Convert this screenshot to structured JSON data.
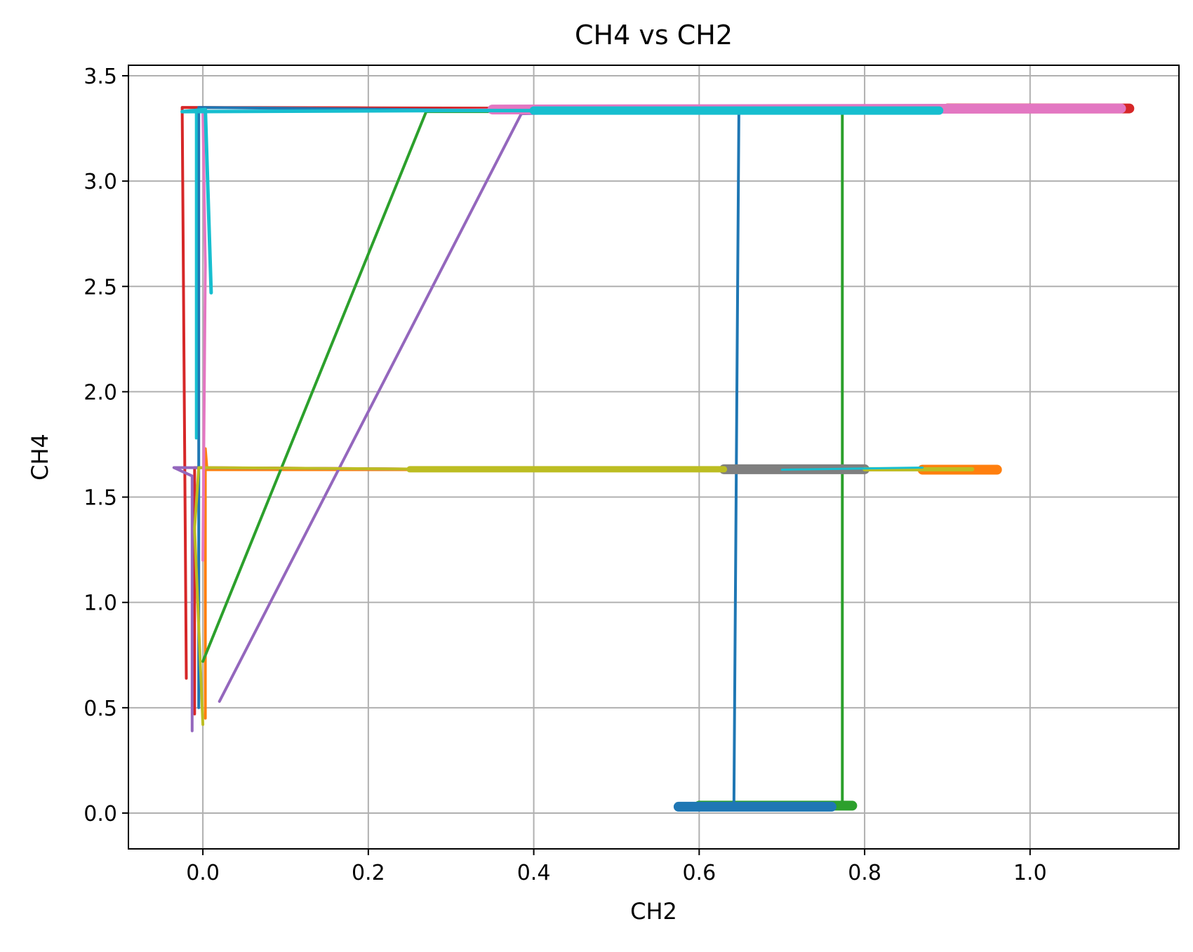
{
  "chart_data": {
    "type": "line",
    "title": "CH4 vs CH2",
    "xlabel": "CH2",
    "ylabel": "CH4",
    "xlim": [
      -0.09,
      1.18
    ],
    "ylim": [
      -0.17,
      3.55
    ],
    "xticks": [
      0.0,
      0.2,
      0.4,
      0.6,
      0.8,
      1.0
    ],
    "yticks": [
      0.0,
      0.5,
      1.0,
      1.5,
      2.0,
      2.5,
      3.0,
      3.5
    ],
    "xtick_labels": [
      "0.0",
      "0.2",
      "0.4",
      "0.6",
      "0.8",
      "1.0"
    ],
    "ytick_labels": [
      "0.0",
      "0.5",
      "1.0",
      "1.5",
      "2.0",
      "2.5",
      "3.0",
      "3.5"
    ],
    "grid": true,
    "legend": "none",
    "series": [
      {
        "color": "#d62728",
        "width": 4,
        "points": [
          [
            -0.02,
            0.64
          ],
          [
            -0.025,
            3.35
          ],
          [
            0.2,
            3.348
          ],
          [
            0.5,
            3.345
          ],
          [
            0.8,
            3.342
          ],
          [
            1.12,
            3.345
          ]
        ]
      },
      {
        "color": "#d62728",
        "width": 4,
        "points": [
          [
            -0.01,
            0.47
          ],
          [
            -0.01,
            1.64
          ],
          [
            0.3,
            1.632
          ],
          [
            0.6,
            1.628
          ],
          [
            0.87,
            1.63
          ]
        ]
      },
      {
        "color": "#d62728",
        "width": 14,
        "points": [
          [
            0.9,
            3.345
          ],
          [
            1.12,
            3.345
          ]
        ]
      },
      {
        "color": "#ff7f0e",
        "width": 4,
        "points": [
          [
            0.003,
            0.45
          ],
          [
            0.003,
            1.73
          ],
          [
            0.005,
            1.63
          ],
          [
            0.4,
            1.63
          ],
          [
            0.96,
            1.63
          ]
        ]
      },
      {
        "color": "#ff7f0e",
        "width": 14,
        "points": [
          [
            0.87,
            1.63
          ],
          [
            0.96,
            1.63
          ]
        ]
      },
      {
        "color": "#2ca02c",
        "width": 4,
        "points": [
          [
            0.0,
            0.72
          ],
          [
            0.27,
            3.33
          ],
          [
            0.6,
            3.33
          ],
          [
            0.9,
            3.33
          ]
        ]
      },
      {
        "color": "#2ca02c",
        "width": 4,
        "points": [
          [
            0.773,
            0.03
          ],
          [
            0.773,
            3.32
          ]
        ]
      },
      {
        "color": "#2ca02c",
        "width": 14,
        "points": [
          [
            0.6,
            0.035
          ],
          [
            0.785,
            0.035
          ]
        ]
      },
      {
        "color": "#9467bd",
        "width": 4,
        "points": [
          [
            -0.013,
            0.39
          ],
          [
            -0.013,
            1.6
          ],
          [
            -0.035,
            1.64
          ],
          [
            0.3,
            1.632
          ],
          [
            0.6,
            1.632
          ]
        ]
      },
      {
        "color": "#9467bd",
        "width": 4,
        "points": [
          [
            0.02,
            0.53
          ],
          [
            0.385,
            3.32
          ],
          [
            0.5,
            3.33
          ]
        ]
      },
      {
        "color": "#1f77b4",
        "width": 4,
        "points": [
          [
            -0.005,
            0.5
          ],
          [
            -0.005,
            3.35
          ],
          [
            0.5,
            3.33
          ],
          [
            0.8,
            3.34
          ]
        ]
      },
      {
        "color": "#1f77b4",
        "width": 4,
        "points": [
          [
            0.642,
            0.04
          ],
          [
            0.648,
            3.33
          ]
        ]
      },
      {
        "color": "#1f77b4",
        "width": 14,
        "points": [
          [
            0.575,
            0.03
          ],
          [
            0.76,
            0.03
          ]
        ]
      },
      {
        "color": "#7f7f7f",
        "width": 14,
        "points": [
          [
            0.63,
            1.632
          ],
          [
            0.8,
            1.632
          ]
        ]
      },
      {
        "color": "#bcbd22",
        "width": 4,
        "points": [
          [
            0.0,
            0.42
          ],
          [
            -0.01,
            1.35
          ],
          [
            -0.005,
            1.64
          ],
          [
            0.3,
            1.632
          ],
          [
            0.63,
            1.632
          ]
        ]
      },
      {
        "color": "#bcbd22",
        "width": 9,
        "points": [
          [
            0.25,
            1.632
          ],
          [
            0.63,
            1.632
          ]
        ]
      },
      {
        "color": "#bcbd22",
        "width": 6,
        "points": [
          [
            0.8,
            1.632
          ],
          [
            0.93,
            1.632
          ]
        ]
      },
      {
        "color": "#17becf",
        "width": 3,
        "points": [
          [
            0.87,
            1.64
          ],
          [
            0.7,
            1.63
          ]
        ]
      },
      {
        "color": "#e377c2",
        "width": 4,
        "points": [
          [
            0.0,
            1.2
          ],
          [
            0.003,
            2.6
          ],
          [
            0.0,
            3.33
          ],
          [
            0.4,
            3.34
          ]
        ]
      },
      {
        "color": "#e377c2",
        "width": 14,
        "points": [
          [
            0.35,
            3.34
          ],
          [
            1.11,
            3.345
          ]
        ]
      },
      {
        "color": "#17becf",
        "width": 5,
        "points": [
          [
            0.01,
            2.47
          ],
          [
            0.003,
            3.34
          ],
          [
            -0.025,
            3.33
          ],
          [
            0.3,
            3.335
          ],
          [
            0.6,
            3.335
          ],
          [
            0.89,
            3.335
          ]
        ]
      },
      {
        "color": "#17becf",
        "width": 4,
        "points": [
          [
            -0.008,
            1.78
          ],
          [
            -0.008,
            3.33
          ]
        ]
      },
      {
        "color": "#17becf",
        "width": 12,
        "points": [
          [
            0.4,
            3.335
          ],
          [
            0.89,
            3.335
          ]
        ]
      }
    ]
  }
}
